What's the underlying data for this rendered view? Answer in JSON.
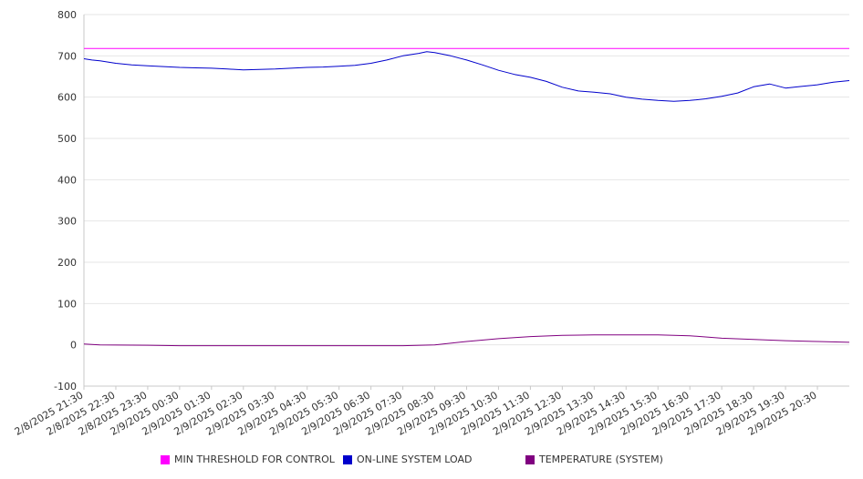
{
  "chart_data": {
    "type": "line",
    "title": "",
    "xlabel": "",
    "ylabel": "",
    "ylim": [
      -100,
      800
    ],
    "yticks": [
      -100,
      0,
      100,
      200,
      300,
      400,
      500,
      600,
      700,
      800
    ],
    "grid": true,
    "legend_position": "bottom",
    "x_tick_labels": [
      "2/8/2025 21:30",
      "2/8/2025 22:30",
      "2/8/2025 23:30",
      "2/9/2025 00:30",
      "2/9/2025 01:30",
      "2/9/2025 02:30",
      "2/9/2025 03:30",
      "2/9/2025 04:30",
      "2/9/2025 05:30",
      "2/9/2025 06:30",
      "2/9/2025 07:30",
      "2/9/2025 08:30",
      "2/9/2025 09:30",
      "2/9/2025 10:30",
      "2/9/2025 11:30",
      "2/9/2025 12:30",
      "2/9/2025 13:30",
      "2/9/2025 14:30",
      "2/9/2025 15:30",
      "2/9/2025 16:30",
      "2/9/2025 17:30",
      "2/9/2025 18:30",
      "2/9/2025 19:30",
      "2/9/2025 20:30"
    ],
    "x_range": [
      "2/8/2025 21:30",
      "2/9/2025 21:30"
    ],
    "series": [
      {
        "name": "MIN THRESHOLD FOR CONTROL",
        "color": "#ff00ff",
        "points": [
          [
            "2/8/2025 21:30",
            718
          ],
          [
            "2/9/2025 21:30",
            718
          ]
        ]
      },
      {
        "name": "ON-LINE SYSTEM LOAD",
        "color": "#0000cc",
        "points": [
          [
            "2/8/2025 21:30",
            693
          ],
          [
            "2/8/2025 21:45",
            690
          ],
          [
            "2/8/2025 22:00",
            688
          ],
          [
            "2/8/2025 22:30",
            682
          ],
          [
            "2/8/2025 23:00",
            678
          ],
          [
            "2/8/2025 23:30",
            676
          ],
          [
            "2/9/2025 00:00",
            674
          ],
          [
            "2/9/2025 00:30",
            672
          ],
          [
            "2/9/2025 01:00",
            671
          ],
          [
            "2/9/2025 01:30",
            670
          ],
          [
            "2/9/2025 02:00",
            668
          ],
          [
            "2/9/2025 02:30",
            666
          ],
          [
            "2/9/2025 03:00",
            667
          ],
          [
            "2/9/2025 03:30",
            668
          ],
          [
            "2/9/2025 04:00",
            670
          ],
          [
            "2/9/2025 04:30",
            672
          ],
          [
            "2/9/2025 05:00",
            673
          ],
          [
            "2/9/2025 05:30",
            675
          ],
          [
            "2/9/2025 06:00",
            677
          ],
          [
            "2/9/2025 06:30",
            682
          ],
          [
            "2/9/2025 07:00",
            690
          ],
          [
            "2/9/2025 07:30",
            700
          ],
          [
            "2/9/2025 08:00",
            706
          ],
          [
            "2/9/2025 08:15",
            710
          ],
          [
            "2/9/2025 08:30",
            708
          ],
          [
            "2/9/2025 09:00",
            700
          ],
          [
            "2/9/2025 09:30",
            690
          ],
          [
            "2/9/2025 10:00",
            678
          ],
          [
            "2/9/2025 10:30",
            665
          ],
          [
            "2/9/2025 11:00",
            655
          ],
          [
            "2/9/2025 11:30",
            648
          ],
          [
            "2/9/2025 12:00",
            638
          ],
          [
            "2/9/2025 12:30",
            624
          ],
          [
            "2/9/2025 13:00",
            615
          ],
          [
            "2/9/2025 13:30",
            612
          ],
          [
            "2/9/2025 14:00",
            608
          ],
          [
            "2/9/2025 14:30",
            600
          ],
          [
            "2/9/2025 15:00",
            595
          ],
          [
            "2/9/2025 15:30",
            592
          ],
          [
            "2/9/2025 16:00",
            590
          ],
          [
            "2/9/2025 16:30",
            592
          ],
          [
            "2/9/2025 17:00",
            596
          ],
          [
            "2/9/2025 17:30",
            602
          ],
          [
            "2/9/2025 18:00",
            610
          ],
          [
            "2/9/2025 18:30",
            625
          ],
          [
            "2/9/2025 19:00",
            632
          ],
          [
            "2/9/2025 19:30",
            622
          ],
          [
            "2/9/2025 20:00",
            626
          ],
          [
            "2/9/2025 20:30",
            630
          ],
          [
            "2/9/2025 21:00",
            636
          ],
          [
            "2/9/2025 21:30",
            640
          ]
        ]
      },
      {
        "name": "TEMPERATURE (SYSTEM)",
        "color": "#800080",
        "points": [
          [
            "2/8/2025 21:30",
            2
          ],
          [
            "2/8/2025 22:00",
            0
          ],
          [
            "2/8/2025 23:30",
            -1
          ],
          [
            "2/9/2025 00:30",
            -2
          ],
          [
            "2/9/2025 02:30",
            -2
          ],
          [
            "2/9/2025 04:30",
            -2
          ],
          [
            "2/9/2025 06:30",
            -2
          ],
          [
            "2/9/2025 07:30",
            -2
          ],
          [
            "2/9/2025 08:30",
            0
          ],
          [
            "2/9/2025 09:30",
            8
          ],
          [
            "2/9/2025 10:30",
            15
          ],
          [
            "2/9/2025 11:30",
            20
          ],
          [
            "2/9/2025 12:30",
            23
          ],
          [
            "2/9/2025 13:30",
            24
          ],
          [
            "2/9/2025 14:30",
            24
          ],
          [
            "2/9/2025 15:30",
            24
          ],
          [
            "2/9/2025 16:30",
            22
          ],
          [
            "2/9/2025 17:30",
            16
          ],
          [
            "2/9/2025 18:30",
            13
          ],
          [
            "2/9/2025 19:30",
            10
          ],
          [
            "2/9/2025 20:30",
            8
          ],
          [
            "2/9/2025 21:30",
            6
          ]
        ]
      }
    ]
  }
}
